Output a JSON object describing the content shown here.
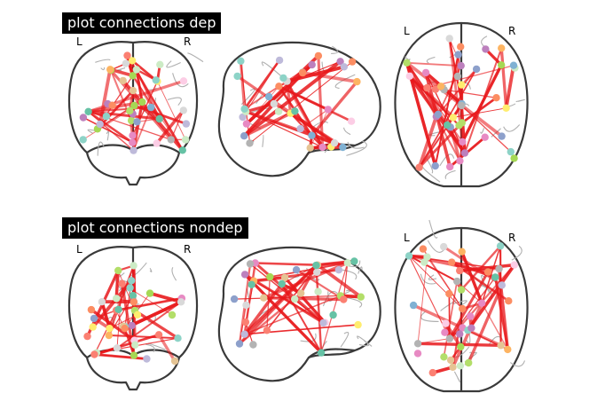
{
  "panels": [
    {
      "title": "plot connections dep",
      "coronal": {
        "left_label": "L",
        "right_label": "R"
      },
      "axial": {
        "left_label": "L",
        "right_label": "R"
      }
    },
    {
      "title": "plot connections nondep",
      "coronal": {
        "left_label": "L",
        "right_label": "R"
      },
      "axial": {
        "left_label": "L",
        "right_label": "R"
      }
    }
  ],
  "colors": {
    "edge": "#e8191c",
    "outline": "#3a3a3a",
    "sulci": "#b0b0b0",
    "nodes": [
      "#8dd3c7",
      "#ffed6f",
      "#bebada",
      "#fb8072",
      "#80b1d3",
      "#fdb462",
      "#b3de69",
      "#fccde5",
      "#d9d9d9",
      "#bc80bd",
      "#ccebc5",
      "#e78ac3",
      "#66c2a5",
      "#a6d854",
      "#e5c494",
      "#b3b3b3",
      "#8da0cb",
      "#fc8d62"
    ]
  }
}
